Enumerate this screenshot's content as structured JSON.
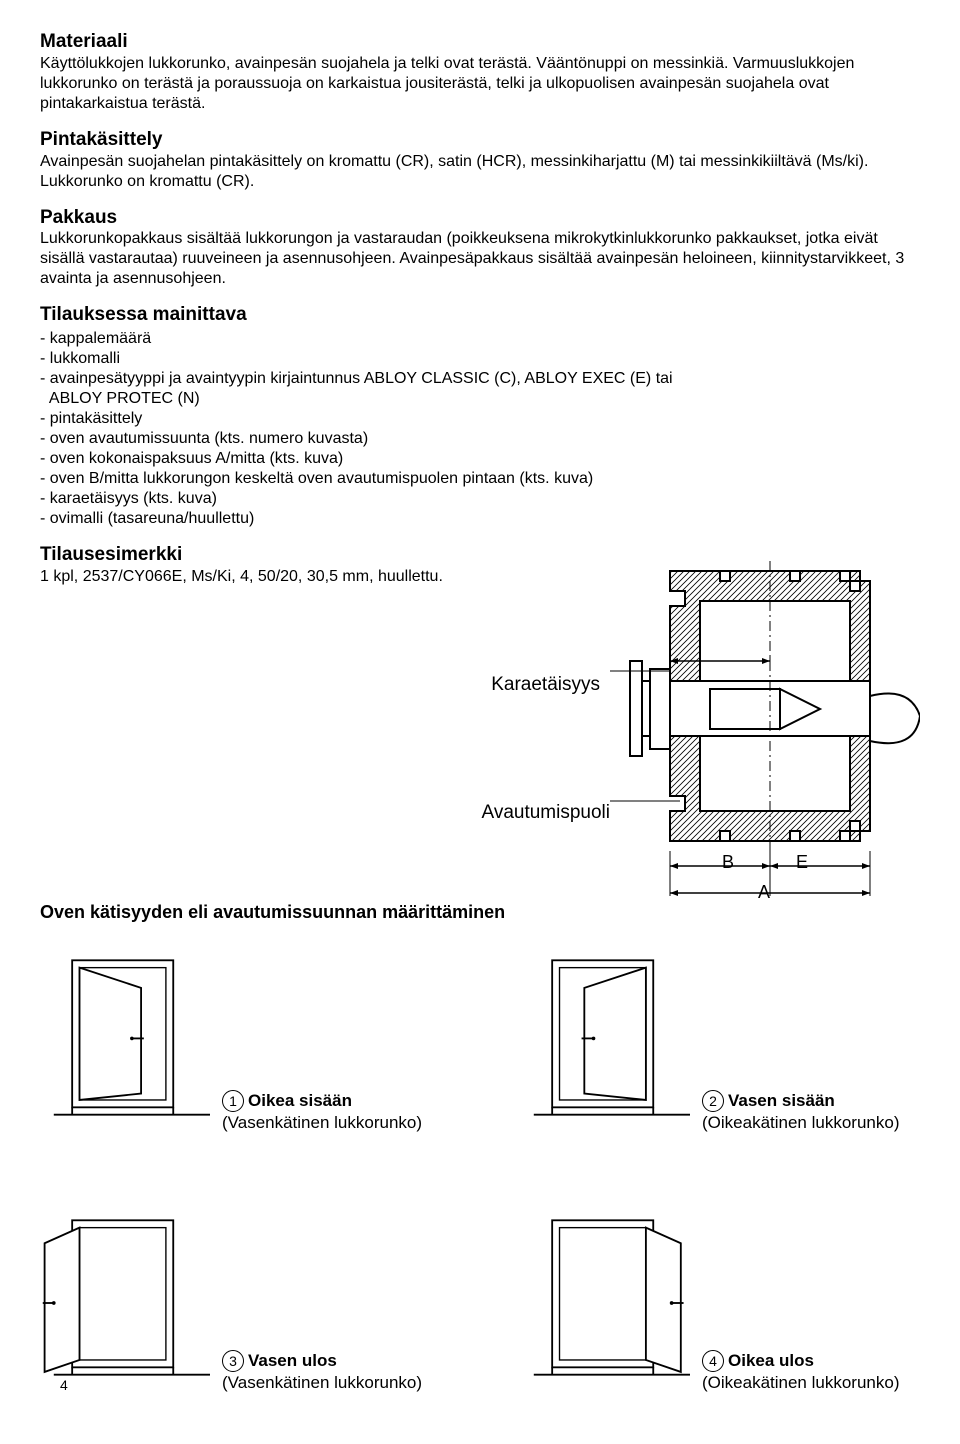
{
  "sections": {
    "materiaali": {
      "heading": "Materiaali",
      "body": "Käyttölukkojen lukkorunko, avainpesän suojahela ja telki ovat terästä. Vääntönuppi on messinkiä. Varmuuslukkojen lukkorunko on terästä ja poraussuoja on karkaistua jousiterästä, telki ja ulkopuolisen avainpesän suojahela ovat pintakarkaistua terästä."
    },
    "pintakasittely": {
      "heading": "Pintakäsittely",
      "body": "Avainpesän suojahelan pintakäsittely on kromattu (CR), satin (HCR), messinkiharjattu (M) tai messinkikiiltävä (Ms/ki). Lukkorunko on kromattu (CR)."
    },
    "pakkaus": {
      "heading": "Pakkaus",
      "body": "Lukkorunkopakkaus sisältää lukkorungon ja vastaraudan (poikkeuksena mikrokytkinlukkorunko pakkaukset, jotka eivät sisällä vastarautaa) ruuveineen ja asennusohjeen. Avainpesäpakkaus sisältää avainpesän heloineen, kiinnitystarvikkeet, 3 avainta ja asennusohjeen."
    },
    "tilauksessa": {
      "heading": "Tilauksessa mainittava",
      "items": [
        "- kappalemäärä",
        "- lukkomalli",
        "- avainpesätyyppi ja avaintyypin kirjaintunnus ABLOY CLASSIC (C), ABLOY EXEC (E) tai",
        "  ABLOY PROTEC (N)",
        "- pintakäsittely",
        "- oven avautumissuunta (kts. numero kuvasta)",
        "- oven kokonaispaksuus A/mitta (kts. kuva)",
        "- oven B/mitta lukkorungon keskeltä oven avautumispuolen pintaan (kts. kuva)",
        "- karaetäisyys (kts. kuva)",
        "- ovimalli (tasareuna/huullettu)"
      ]
    },
    "tilausesimerkki": {
      "heading": "Tilausesimerkki",
      "body": "1 kpl, 2537/CY066E, Ms/Ki, 4, 50/20, 30,5 mm, huullettu."
    }
  },
  "diagram": {
    "label_karaetaisyys": "Karaetäisyys",
    "label_avautumispuoli": "Avautumispuoli",
    "dim_b": "B",
    "dim_e": "E",
    "dim_a": "A",
    "stroke": "#000000",
    "fill": "#ffffff",
    "hatch": "#000000"
  },
  "handing": {
    "title": "Oven kätisyyden eli avautumissuunnan määrittäminen",
    "doors": [
      {
        "num": "1",
        "title": "Oikea sisään",
        "sub": "(Vasenkätinen lukkorunko)"
      },
      {
        "num": "2",
        "title": "Vasen sisään",
        "sub": "(Oikeakätinen lukkorunko)"
      },
      {
        "num": "3",
        "title": "Vasen ulos",
        "sub": "(Vasenkätinen lukkorunko)"
      },
      {
        "num": "4",
        "title": "Oikea ulos",
        "sub": "(Oikeakätinen lukkorunko)"
      }
    ]
  },
  "page_number": "4",
  "svg": {
    "door_stroke": "#000000",
    "door_width": 160,
    "door_height": 200
  }
}
